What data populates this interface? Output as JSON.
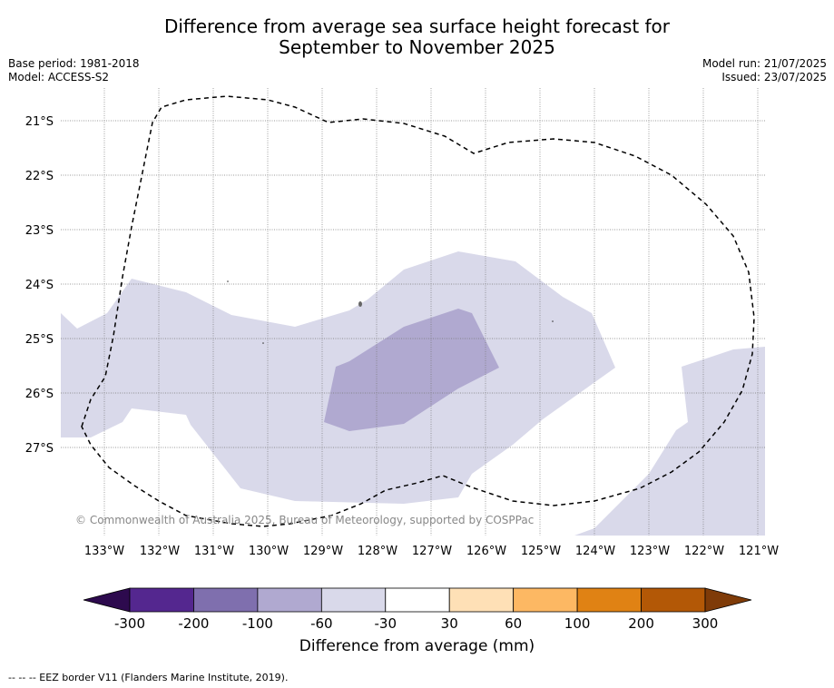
{
  "title": {
    "line1": "Difference from average sea surface height forecast for",
    "line2": "September to November 2025"
  },
  "meta_left": {
    "base_period": "Base period: 1981-2018",
    "model": "Model: ACCESS-S2"
  },
  "meta_right": {
    "model_run": "Model run: 21/07/2025",
    "issued": "Issued: 23/07/2025"
  },
  "map": {
    "lat_labels": [
      "21°S",
      "22°S",
      "23°S",
      "24°S",
      "25°S",
      "26°S",
      "27°S"
    ],
    "lon_labels": [
      "133°W",
      "132°W",
      "131°W",
      "130°W",
      "129°W",
      "128°W",
      "127°W",
      "126°W",
      "125°W",
      "124°W",
      "123°W",
      "122°W",
      "121°W"
    ],
    "copyright": "© Commonwealth of Australia 2025, Bureau of Meteorology, supported by COSPPac"
  },
  "colorbar": {
    "ticks": [
      "-300",
      "-200",
      "-100",
      "-60",
      "-30",
      "30",
      "60",
      "100",
      "200",
      "300"
    ],
    "colors": [
      "#2d0a4e",
      "#54278f",
      "#7f6fae",
      "#b0a9d0",
      "#d9d9ea",
      "#ffffff",
      "#fee0b6",
      "#fdb863",
      "#e08214",
      "#b35806",
      "#7f3b08"
    ],
    "label": "Difference from average (mm)"
  },
  "footer": "-- -- -- EEZ border V11 (Flanders Marine Institute, 2019)."
}
